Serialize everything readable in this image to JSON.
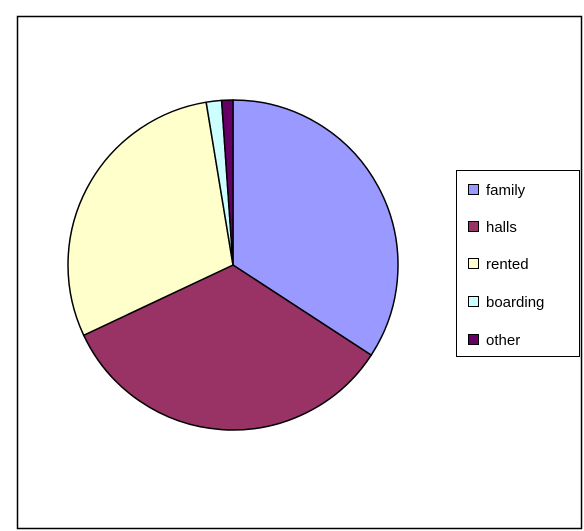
{
  "chart_data": {
    "type": "pie",
    "categories": [
      "family",
      "halls",
      "rented",
      "boarding",
      "other"
    ],
    "values": [
      34.2,
      33.8,
      29.4,
      1.5,
      1.1
    ],
    "colors": [
      "#9999ff",
      "#993366",
      "#ffffcc",
      "#ccffff",
      "#660066"
    ],
    "legend": "right"
  }
}
